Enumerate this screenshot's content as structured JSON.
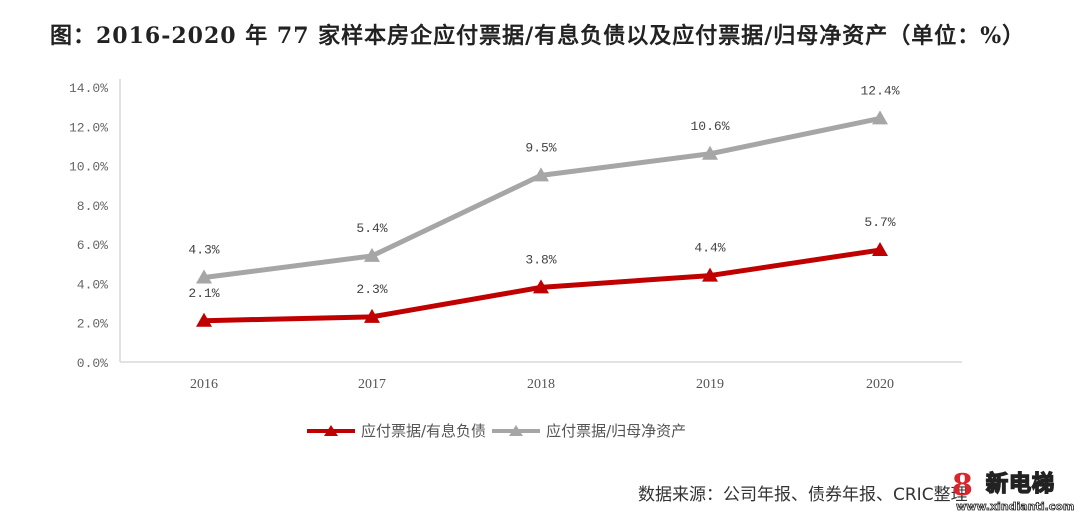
{
  "title": "图：2016-2020 年 77 家样本房企应付票据/有息负债以及应付票据/归母净资产（单位：%）",
  "source": "数据来源：公司年报、债券年报、CRIC整理",
  "watermark": {
    "brand": "新电梯",
    "url": "www.xindianti.com",
    "logo_glyph": "8"
  },
  "colors": {
    "series1": "#c00000",
    "series2": "#a6a6a6",
    "axis": "#d9d9d9"
  },
  "legend": [
    {
      "label": "应付票据/有息负债",
      "color": "#c00000"
    },
    {
      "label": "应付票据/归母净资产",
      "color": "#a6a6a6"
    }
  ],
  "chart_data": {
    "type": "line",
    "title": "2016-2020 年 77 家样本房企应付票据/有息负债以及应付票据/归母净资产（单位：%）",
    "xlabel": "",
    "ylabel": "",
    "categories": [
      "2016",
      "2017",
      "2018",
      "2019",
      "2020"
    ],
    "series": [
      {
        "name": "应付票据/有息负债",
        "values": [
          2.1,
          2.3,
          3.8,
          4.4,
          5.7
        ],
        "labels": [
          "2.1%",
          "2.3%",
          "3.8%",
          "4.4%",
          "5.7%"
        ],
        "marker": "triangle",
        "color": "#c00000"
      },
      {
        "name": "应付票据/归母净资产",
        "values": [
          4.3,
          5.4,
          9.5,
          10.6,
          12.4
        ],
        "labels": [
          "4.3%",
          "5.4%",
          "9.5%",
          "10.6%",
          "12.4%"
        ],
        "marker": "triangle",
        "color": "#a6a6a6"
      }
    ],
    "yticks": [
      "0.0%",
      "2.0%",
      "4.0%",
      "6.0%",
      "8.0%",
      "10.0%",
      "12.0%",
      "14.0%"
    ],
    "ylim": [
      0,
      14
    ],
    "grid": false,
    "legend_position": "bottom"
  }
}
